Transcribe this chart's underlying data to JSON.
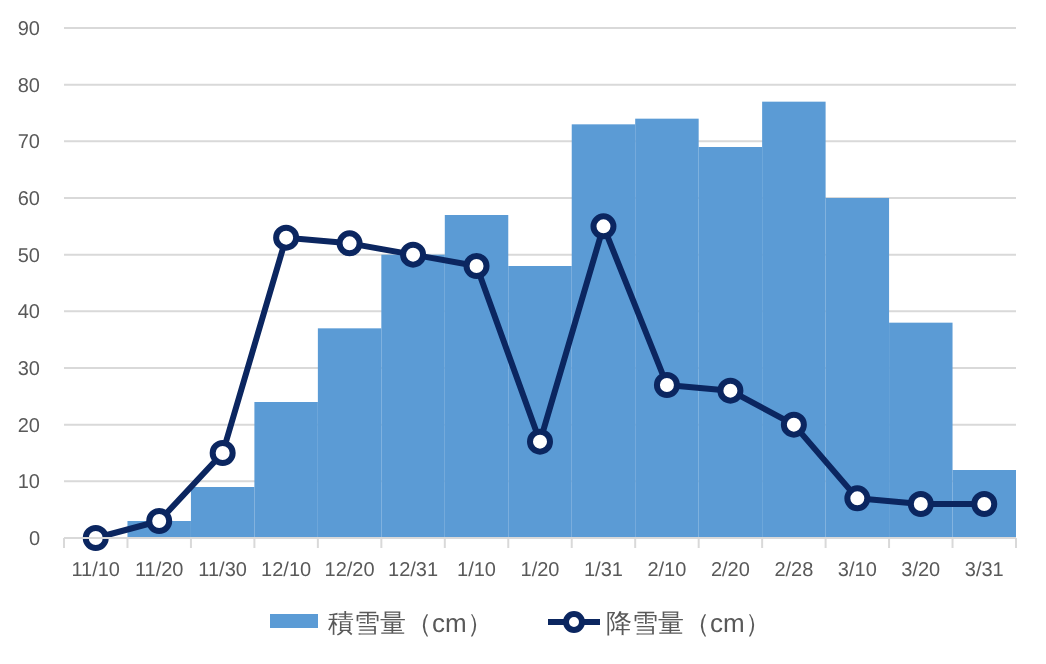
{
  "chart_data": {
    "type": "bar",
    "categories": [
      "11/10",
      "11/20",
      "11/30",
      "12/10",
      "12/20",
      "12/31",
      "1/10",
      "1/20",
      "1/31",
      "2/10",
      "2/20",
      "2/28",
      "3/10",
      "3/20",
      "3/31"
    ],
    "series": [
      {
        "name": "積雪量（cm）",
        "color": "#5b9bd5",
        "values": [
          0,
          3,
          9,
          24,
          37,
          50,
          57,
          48,
          73,
          74,
          69,
          77,
          60,
          38,
          12
        ]
      },
      {
        "name": "降雪量（cm）",
        "type": "line",
        "color": "#0b2660",
        "values": [
          0,
          3,
          15,
          53,
          52,
          50,
          48,
          17,
          55,
          27,
          26,
          20,
          7,
          6,
          6
        ]
      }
    ],
    "ylim": [
      0,
      90
    ],
    "yticks": [
      0,
      10,
      20,
      30,
      40,
      50,
      60,
      70,
      80,
      90
    ],
    "grid": "y",
    "legend": "bottom",
    "marker": "circle",
    "line_style": "solid"
  }
}
